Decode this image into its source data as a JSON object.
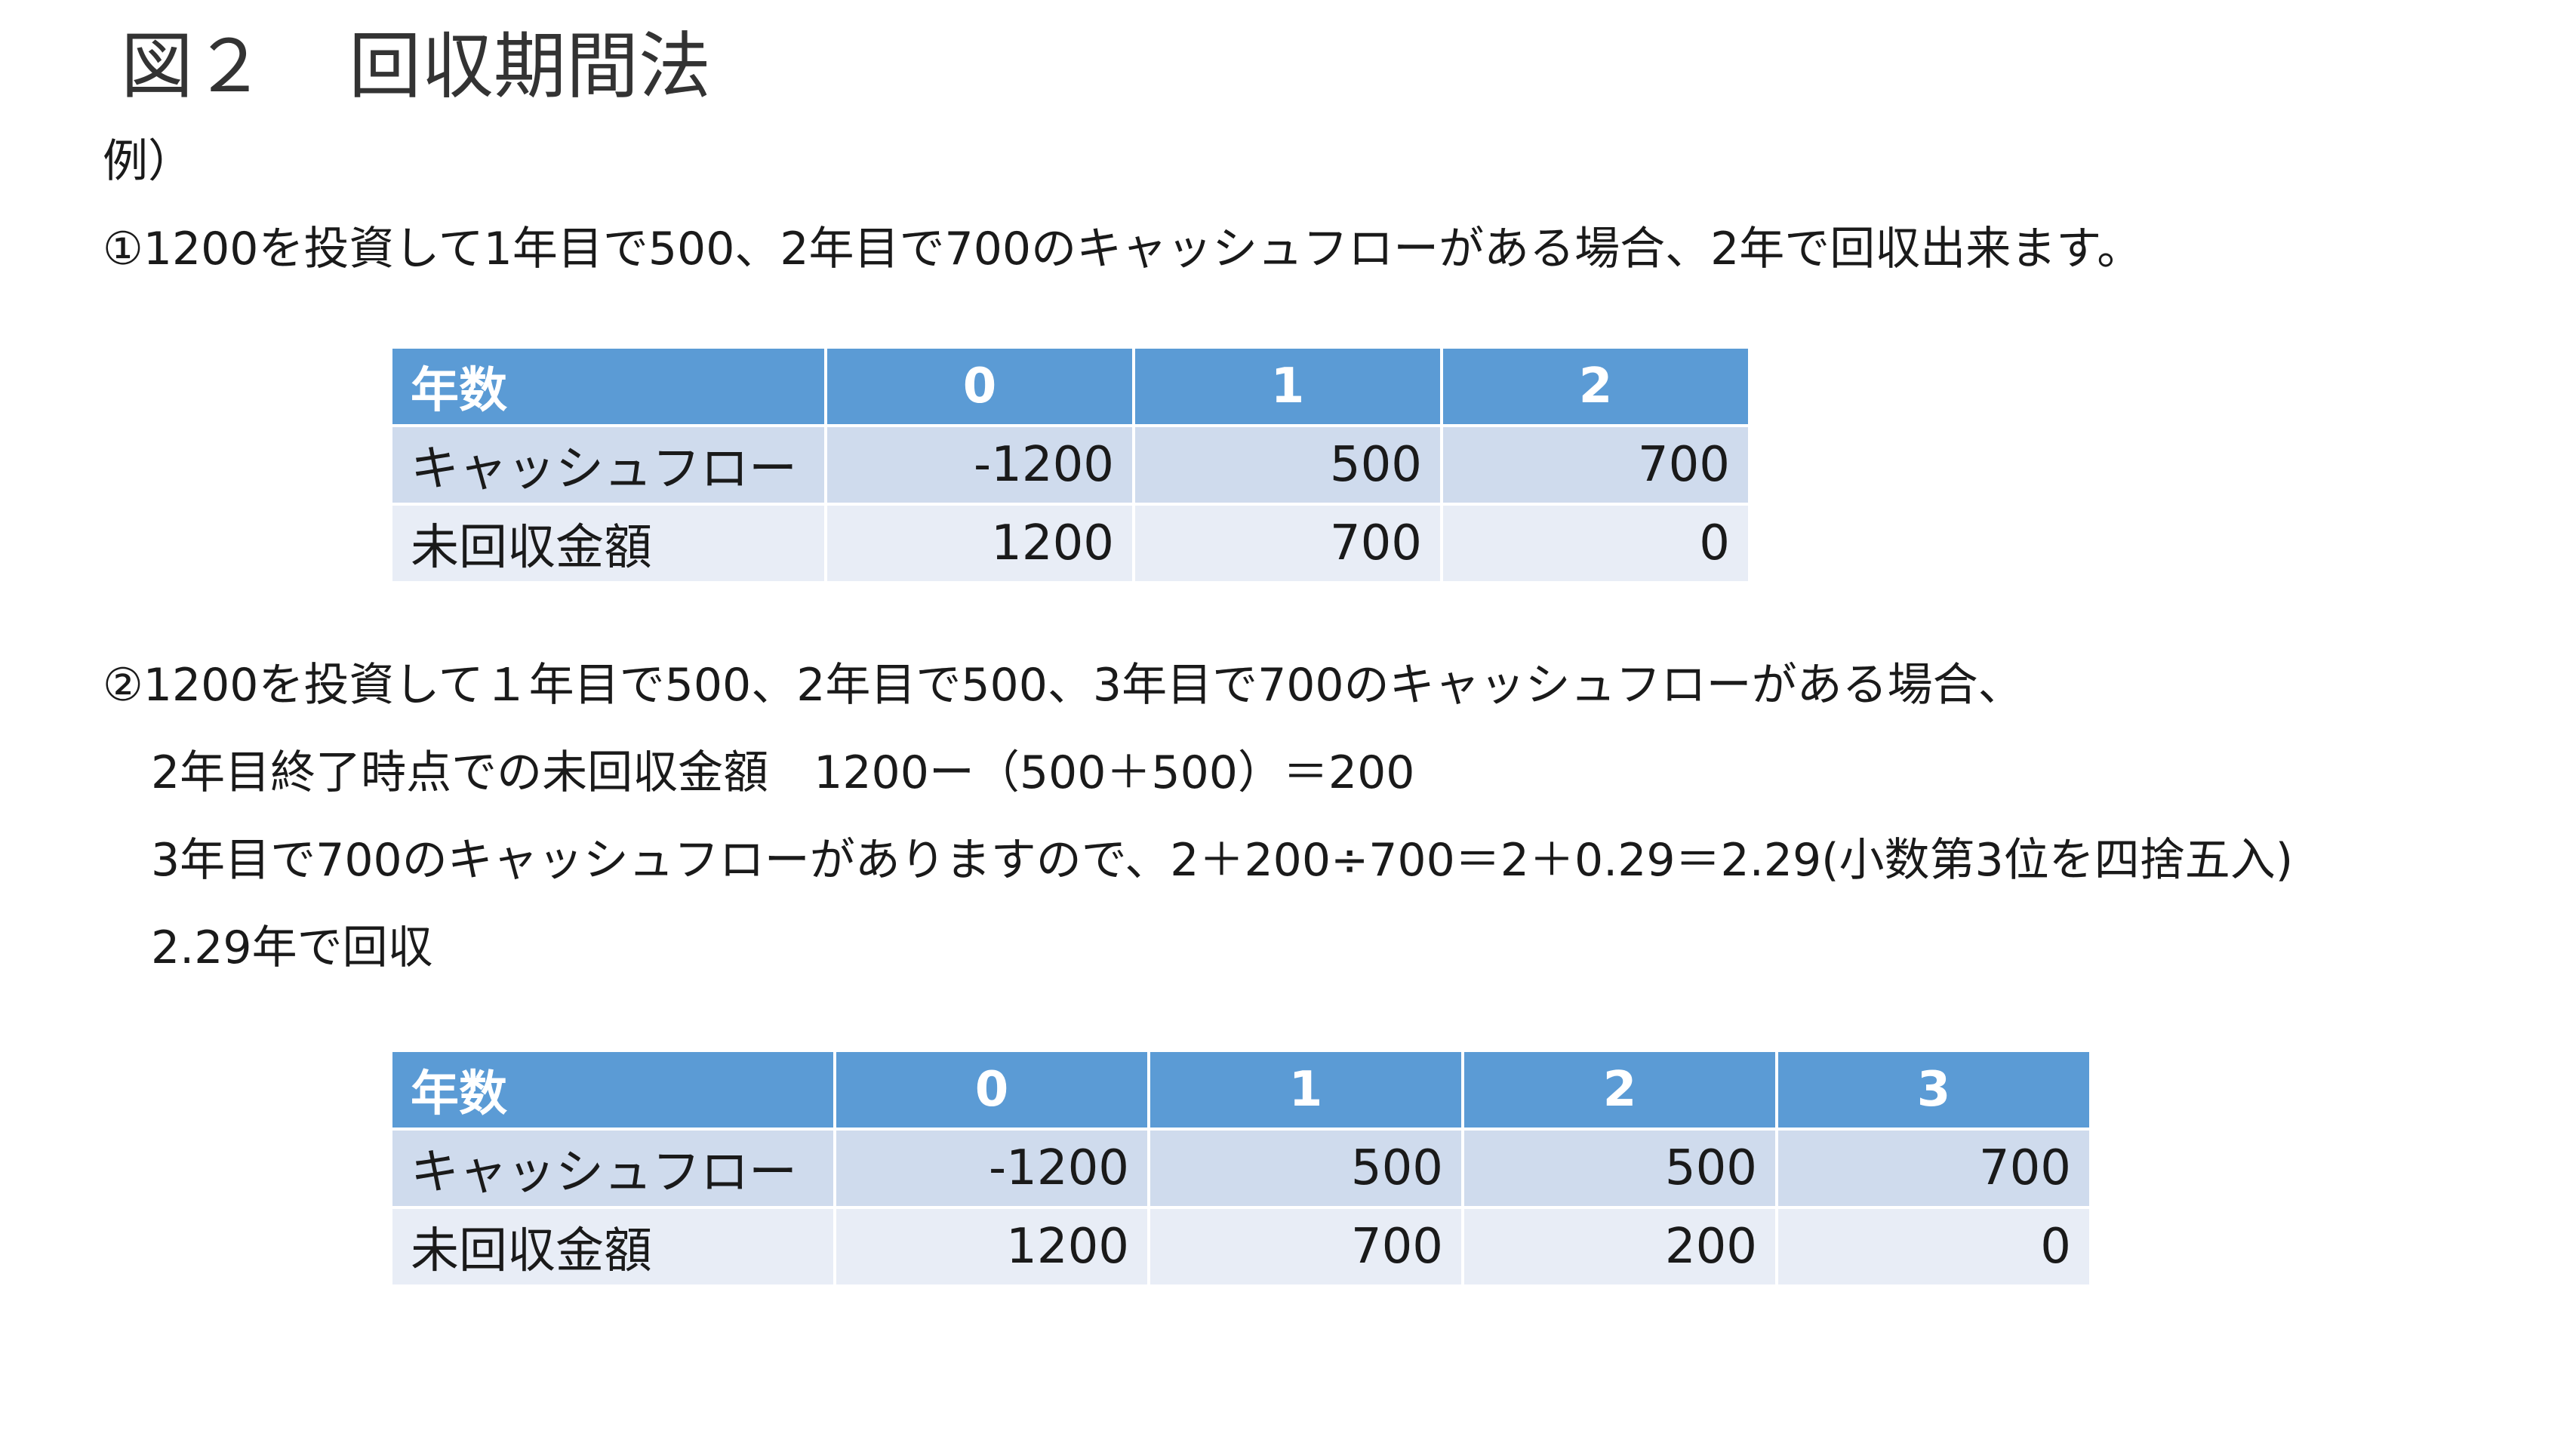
{
  "header": {
    "figure_label": "図２",
    "title": "回収期間法"
  },
  "body": {
    "example_label": "例）",
    "case1_text": "①1200を投資して1年目で500、2年目で700のキャッシュフローがある場合、2年で回収出来ます。",
    "case2_line1": "②1200を投資して１年目で500、2年目で500、3年目で700のキャッシュフローがある場合、",
    "case2_line2": "2年目終了時点での未回収金額　1200ー（500＋500）＝200",
    "case2_line3": "3年目で700のキャッシュフローがありますので、2＋200÷700＝2＋0.29＝2.29(小数第3位を四捨五入)",
    "case2_line4": "2.29年で回収"
  },
  "table1": {
    "headers": [
      "年数",
      "0",
      "1",
      "2"
    ],
    "rows": [
      {
        "label": "キャッシュフロー",
        "values": [
          "-1200",
          "500",
          "700"
        ]
      },
      {
        "label": "未回収金額",
        "values": [
          "1200",
          "700",
          "0"
        ]
      }
    ]
  },
  "table2": {
    "headers": [
      "年数",
      "0",
      "1",
      "2",
      "3"
    ],
    "rows": [
      {
        "label": "キャッシュフロー",
        "values": [
          "-1200",
          "500",
          "500",
          "700"
        ]
      },
      {
        "label": "未回収金額",
        "values": [
          "1200",
          "700",
          "200",
          "0"
        ]
      }
    ]
  },
  "colors": {
    "header_fill": "#5b9bd5",
    "row_fill_dark": "#cfdbed",
    "row_fill_light": "#e8edf6"
  }
}
